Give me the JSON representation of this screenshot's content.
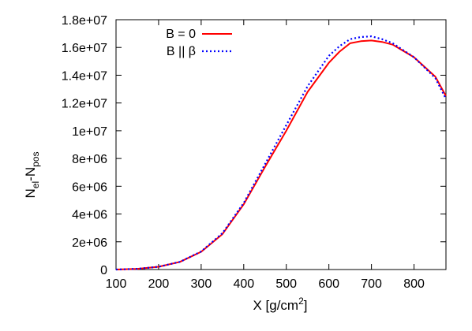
{
  "chart_data": {
    "type": "line",
    "xlabel": {
      "main": "X [g/cm",
      "sup": "2",
      "close": "]"
    },
    "ylabel": {
      "a": "N",
      "a_sub": "el",
      "dash": "-N",
      "b_sub": "pos"
    },
    "xlim": [
      100,
      875
    ],
    "ylim": [
      0,
      18000000
    ],
    "grid": false,
    "legend_position": "top-left",
    "x_ticks": [
      {
        "value": 100,
        "label": "100"
      },
      {
        "value": 200,
        "label": "200"
      },
      {
        "value": 300,
        "label": "300"
      },
      {
        "value": 400,
        "label": "400"
      },
      {
        "value": 500,
        "label": "500"
      },
      {
        "value": 600,
        "label": "600"
      },
      {
        "value": 700,
        "label": "700"
      },
      {
        "value": 800,
        "label": "800"
      }
    ],
    "y_ticks": [
      {
        "value": 0,
        "label": "0"
      },
      {
        "value": 2000000,
        "label": "2e+06"
      },
      {
        "value": 4000000,
        "label": "4e+06"
      },
      {
        "value": 6000000,
        "label": "6e+06"
      },
      {
        "value": 8000000,
        "label": "8e+06"
      },
      {
        "value": 10000000,
        "label": "1e+07"
      },
      {
        "value": 12000000,
        "label": "1.2e+07"
      },
      {
        "value": 14000000,
        "label": "1.4e+07"
      },
      {
        "value": 16000000,
        "label": "1.6e+07"
      },
      {
        "value": 18000000,
        "label": "1.8e+07"
      }
    ],
    "series": [
      {
        "name": "B = 0",
        "color": "#ff0000",
        "dash": "solid",
        "x": [
          100,
          150,
          200,
          250,
          300,
          350,
          400,
          450,
          500,
          550,
          600,
          625,
          650,
          675,
          700,
          725,
          750,
          800,
          850,
          875
        ],
        "y": [
          0,
          50000,
          200000,
          550000,
          1280000,
          2550000,
          4700000,
          7400000,
          10000000,
          12800000,
          14900000,
          15700000,
          16300000,
          16450000,
          16500000,
          16400000,
          16200000,
          15300000,
          13900000,
          12500000
        ]
      },
      {
        "name": "B || β",
        "color": "#0000ff",
        "dash": "dotted",
        "x": [
          100,
          150,
          200,
          250,
          300,
          350,
          400,
          450,
          500,
          550,
          600,
          625,
          650,
          675,
          700,
          725,
          750,
          800,
          850,
          875
        ],
        "y": [
          0,
          50000,
          200000,
          550000,
          1300000,
          2620000,
          4800000,
          7600000,
          10400000,
          13200000,
          15400000,
          16100000,
          16600000,
          16750000,
          16800000,
          16600000,
          16300000,
          15300000,
          13800000,
          12300000
        ]
      }
    ]
  }
}
